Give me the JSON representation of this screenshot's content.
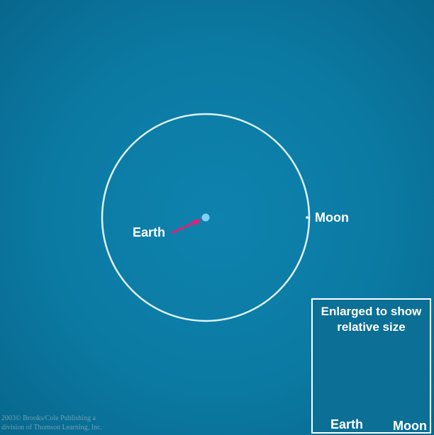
{
  "diagram": {
    "earth_label": "Earth",
    "moon_label": "Moon"
  },
  "inset": {
    "title": "Enlarged to show\nrelative size",
    "earth_label": "Earth",
    "moon_label": "Moon"
  },
  "copyright": "2003© Brooks/Cole Publishing a\ndivision of Thomson Learning, Inc.",
  "colors": {
    "background": "#0b7aa3",
    "orbit": "#dff2ff",
    "earth_dot": "#7fd0f5",
    "arrow": "#e0207a"
  },
  "icons": {
    "earth": "earth-globe",
    "moon": "moon-globe"
  }
}
